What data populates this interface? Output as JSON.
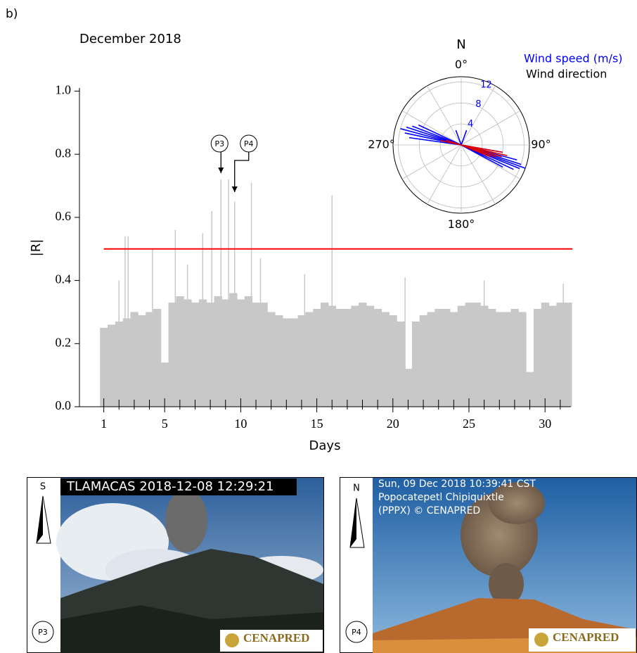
{
  "panel_label": "b)",
  "chart_data": [
    {
      "type": "bar",
      "title": "December 2018",
      "x_label": "Days",
      "y_label": "|R|",
      "xlim": [
        -0.6,
        31.7
      ],
      "ylim": [
        0,
        1.01
      ],
      "xticks": [
        1,
        5,
        10,
        15,
        20,
        25,
        30
      ],
      "xminorticks": [
        2,
        3,
        4,
        6,
        7,
        8,
        9,
        11,
        12,
        13,
        14,
        16,
        17,
        18,
        19,
        21,
        22,
        23,
        24,
        26,
        27,
        28,
        29,
        31
      ],
      "yticks": [
        {
          "value": 0,
          "label": "0.0"
        },
        0.2,
        0.4,
        0.6,
        0.8,
        {
          "value": 1,
          "label": "1.0"
        }
      ],
      "threshold": 0.5,
      "threshold_color": "#ff0000",
      "series": [
        {
          "color": "#c8c8c8",
          "x": [
            1,
            1.5,
            2,
            2.5,
            3,
            3.5,
            4,
            4.5,
            5,
            5.5,
            6,
            6.5,
            7,
            7.5,
            8,
            8.5,
            9,
            9.5,
            10,
            10.5,
            11,
            11.5,
            12,
            12.5,
            13,
            13.5,
            14,
            14.5,
            15,
            15.5,
            16,
            16.5,
            17,
            17.5,
            18,
            18.5,
            19,
            19.5,
            20,
            20.5,
            21,
            21.5,
            22,
            22.5,
            23,
            23.5,
            24,
            24.5,
            25,
            25.5,
            26,
            26.5,
            27,
            27.5,
            28,
            28.5,
            29,
            29.5,
            30,
            30.5,
            31,
            31.5
          ],
          "values": [
            0.25,
            0.26,
            0.27,
            0.28,
            0.3,
            0.29,
            0.3,
            0.31,
            0.14,
            0.33,
            0.35,
            0.34,
            0.33,
            0.34,
            0.33,
            0.35,
            0.34,
            0.36,
            0.34,
            0.35,
            0.33,
            0.33,
            0.3,
            0.29,
            0.28,
            0.28,
            0.29,
            0.3,
            0.31,
            0.33,
            0.32,
            0.31,
            0.31,
            0.32,
            0.33,
            0.32,
            0.31,
            0.3,
            0.29,
            0.27,
            0.12,
            0.27,
            0.29,
            0.3,
            0.31,
            0.31,
            0.3,
            0.32,
            0.33,
            0.33,
            0.32,
            0.31,
            0.3,
            0.3,
            0.31,
            0.3,
            0.11,
            0.31,
            0.33,
            0.32,
            0.33,
            0.33
          ]
        },
        {
          "color": "#c8c8c8",
          "x": [
            2.0,
            2.4,
            2.6,
            4.2,
            5.7,
            6.5,
            7.5,
            8.1,
            8.7,
            9.2,
            9.6,
            10.7,
            11.3,
            14.2,
            16.0,
            20.8,
            26.0,
            31.2
          ],
          "values": [
            0.4,
            0.54,
            0.54,
            0.5,
            0.56,
            0.45,
            0.55,
            0.62,
            0.72,
            0.72,
            0.65,
            0.71,
            0.47,
            0.42,
            0.67,
            0.41,
            0.4,
            0.39
          ]
        }
      ],
      "annotations": [
        {
          "text": "P3",
          "x": 8.7,
          "y": 0.74
        },
        {
          "text": "P4",
          "x": 9.6,
          "y": 0.68
        }
      ]
    },
    {
      "type": "polar",
      "rlim": [
        0,
        13
      ],
      "rticks": [
        4,
        8,
        12
      ],
      "rtick_color": "#0000ff",
      "thetagrid": [
        0,
        30,
        60,
        90,
        120,
        150,
        180,
        210,
        240,
        270,
        300,
        330
      ],
      "thetaticks": [
        {
          "value": 0,
          "label": "0°"
        },
        {
          "value": 90,
          "label": "90°"
        },
        {
          "value": 180,
          "label": "180°"
        },
        {
          "value": 270,
          "label": "270°"
        }
      ],
      "north_label": "N",
      "legend_texts": [
        {
          "text": "Wind speed (m/s)",
          "color": "#0000ff"
        },
        {
          "text": "Wind direction",
          "color": "#000000"
        }
      ],
      "series": [
        {
          "color": "#0000ff",
          "directions": [
            278,
            282,
            285,
            288,
            291,
            295,
            105,
            108,
            110,
            112,
            115,
            118,
            100,
            20,
            340
          ],
          "values": [
            10,
            11,
            12,
            11,
            10,
            9,
            11,
            12,
            13,
            12,
            11,
            9,
            8,
            3,
            3
          ]
        },
        {
          "color": "#dd0000",
          "directions": [
            100,
            103,
            106,
            109,
            112,
            282,
            288
          ],
          "values": [
            8,
            9,
            8,
            7,
            6,
            4,
            3
          ]
        }
      ]
    }
  ],
  "photos": [
    {
      "compass": "S",
      "label": "P3",
      "caption_lines": [
        "TLAMACAS 2018-12-08 12:29:21"
      ],
      "logo": "CENAPRED"
    },
    {
      "compass": "N",
      "label": "P4",
      "caption_lines": [
        "Sun, 09 Dec 2018 10:39:41 CST",
        "Popocatepetl Chipiquixtle",
        "(PPPX) © CENAPRED"
      ],
      "logo": "CENAPRED"
    }
  ]
}
